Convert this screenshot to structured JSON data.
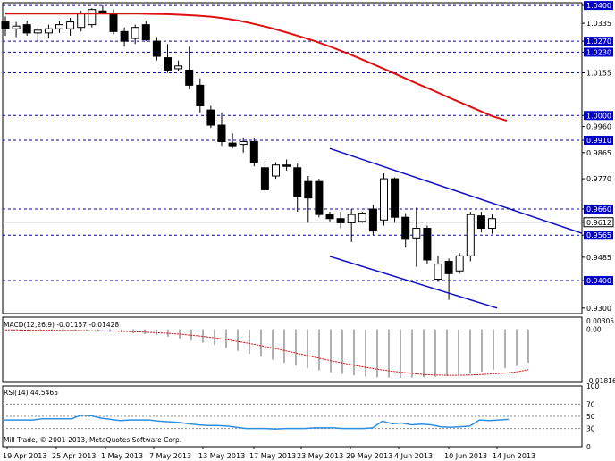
{
  "chart_data": [
    {
      "type": "candlestick",
      "title": "",
      "ylim": [
        0.928,
        1.041
      ],
      "price_levels": [
        "1.0400",
        "1.0335",
        "1.0270",
        "1.0230",
        "1.0155",
        "1.0000",
        "0.9960",
        "0.9910",
        "0.9865",
        "0.9770",
        "0.9660",
        "0.9612",
        "0.9565",
        "0.9485",
        "0.9400",
        "0.9300"
      ],
      "highlighted_levels": [
        "1.0400",
        "1.0270",
        "1.0230",
        "1.0000",
        "0.9910",
        "0.9660",
        "0.9612",
        "0.9565",
        "0.9400"
      ],
      "dashed_lines": [
        1.04,
        1.027,
        1.023,
        1.0155,
        1.0,
        0.991,
        0.966,
        0.9565,
        0.94
      ],
      "current_price_line": 0.9612,
      "candles": [
        {
          "o": 1.034,
          "h": 1.036,
          "l": 1.029,
          "c": 1.0315
        },
        {
          "o": 1.0315,
          "h": 1.034,
          "l": 1.0285,
          "c": 1.0325
        },
        {
          "o": 1.033,
          "h": 1.0345,
          "l": 1.029,
          "c": 1.03
        },
        {
          "o": 1.03,
          "h": 1.032,
          "l": 1.027,
          "c": 1.031
        },
        {
          "o": 1.03,
          "h": 1.033,
          "l": 1.028,
          "c": 1.0315
        },
        {
          "o": 1.0315,
          "h": 1.0345,
          "l": 1.03,
          "c": 1.033
        },
        {
          "o": 1.0315,
          "h": 1.0355,
          "l": 1.029,
          "c": 1.034
        },
        {
          "o": 1.032,
          "h": 1.038,
          "l": 1.0305,
          "c": 1.037
        },
        {
          "o": 1.033,
          "h": 1.039,
          "l": 1.032,
          "c": 1.0385
        },
        {
          "o": 1.038,
          "h": 1.04,
          "l": 1.037,
          "c": 1.037
        },
        {
          "o": 1.037,
          "h": 1.0385,
          "l": 1.0295,
          "c": 1.0305
        },
        {
          "o": 1.0305,
          "h": 1.032,
          "l": 1.025,
          "c": 1.027
        },
        {
          "o": 1.028,
          "h": 1.033,
          "l": 1.026,
          "c": 1.032
        },
        {
          "o": 1.033,
          "h": 1.0345,
          "l": 1.027,
          "c": 1.0275
        },
        {
          "o": 1.027,
          "h": 1.0285,
          "l": 1.02,
          "c": 1.0215
        },
        {
          "o": 1.021,
          "h": 1.026,
          "l": 1.0155,
          "c": 1.0165
        },
        {
          "o": 1.017,
          "h": 1.02,
          "l": 1.016,
          "c": 1.018
        },
        {
          "o": 1.0165,
          "h": 1.025,
          "l": 1.0095,
          "c": 1.011
        },
        {
          "o": 1.011,
          "h": 1.0135,
          "l": 1.001,
          "c": 1.0035
        },
        {
          "o": 1.002,
          "h": 1.0035,
          "l": 0.9955,
          "c": 0.9965
        },
        {
          "o": 0.9965,
          "h": 1.001,
          "l": 0.989,
          "c": 0.9905
        },
        {
          "o": 0.99,
          "h": 0.9935,
          "l": 0.988,
          "c": 0.989
        },
        {
          "o": 0.9895,
          "h": 0.992,
          "l": 0.9865,
          "c": 0.9905
        },
        {
          "o": 0.9905,
          "h": 0.992,
          "l": 0.9815,
          "c": 0.983
        },
        {
          "o": 0.981,
          "h": 0.9835,
          "l": 0.972,
          "c": 0.973
        },
        {
          "o": 0.978,
          "h": 0.983,
          "l": 0.977,
          "c": 0.982
        },
        {
          "o": 0.982,
          "h": 0.984,
          "l": 0.98,
          "c": 0.9815
        },
        {
          "o": 0.981,
          "h": 0.9825,
          "l": 0.965,
          "c": 0.9705
        },
        {
          "o": 0.976,
          "h": 0.978,
          "l": 0.961,
          "c": 0.97
        },
        {
          "o": 0.976,
          "h": 0.977,
          "l": 0.963,
          "c": 0.964
        },
        {
          "o": 0.964,
          "h": 0.965,
          "l": 0.9615,
          "c": 0.9625
        },
        {
          "o": 0.9625,
          "h": 0.965,
          "l": 0.959,
          "c": 0.961
        },
        {
          "o": 0.961,
          "h": 0.966,
          "l": 0.954,
          "c": 0.964
        },
        {
          "o": 0.9615,
          "h": 0.965,
          "l": 0.961,
          "c": 0.9645
        },
        {
          "o": 0.966,
          "h": 0.9675,
          "l": 0.9565,
          "c": 0.958
        },
        {
          "o": 0.962,
          "h": 0.979,
          "l": 0.96,
          "c": 0.977
        },
        {
          "o": 0.977,
          "h": 0.9775,
          "l": 0.961,
          "c": 0.963
        },
        {
          "o": 0.963,
          "h": 0.9645,
          "l": 0.952,
          "c": 0.955
        },
        {
          "o": 0.9555,
          "h": 0.9665,
          "l": 0.945,
          "c": 0.959
        },
        {
          "o": 0.959,
          "h": 0.96,
          "l": 0.946,
          "c": 0.9475
        },
        {
          "o": 0.9405,
          "h": 0.949,
          "l": 0.9395,
          "c": 0.946
        },
        {
          "o": 0.947,
          "h": 0.948,
          "l": 0.933,
          "c": 0.9425
        },
        {
          "o": 0.9435,
          "h": 0.95,
          "l": 0.9425,
          "c": 0.949
        },
        {
          "o": 0.949,
          "h": 0.965,
          "l": 0.947,
          "c": 0.964
        },
        {
          "o": 0.9635,
          "h": 0.965,
          "l": 0.9575,
          "c": 0.959
        },
        {
          "o": 0.959,
          "h": 0.964,
          "l": 0.957,
          "c": 0.9625
        }
      ],
      "moving_average": [
        1.037,
        1.037,
        1.037,
        1.037,
        1.037,
        1.037,
        1.037,
        1.037,
        1.037,
        1.037,
        1.0369,
        1.0368,
        1.0366,
        1.0363,
        1.0359,
        1.0352,
        1.0343,
        1.0331,
        1.0318,
        1.0303,
        1.0287,
        1.027,
        1.0251,
        1.023,
        1.0208,
        1.0185,
        1.0162,
        1.0138,
        1.0114,
        1.0091,
        1.0067,
        1.0044,
        1.0021,
        0.9998,
        0.9981
      ],
      "trend_channel": {
        "upper": [
          [
            30,
            0.988
          ],
          [
            45,
            0.965
          ],
          [
            50,
            0.9572
          ]
        ],
        "lower": [
          [
            30,
            0.9488
          ],
          [
            42,
            0.93
          ]
        ]
      }
    },
    {
      "type": "macd",
      "title": "MACD(12,26,9) -0.01157 -0.01428",
      "ylim": [
        -0.01816,
        0.00305
      ],
      "tick_labels": [
        "0.00305",
        "0.00",
        "-0.01816"
      ],
      "histogram": [
        0.0,
        -0.0001,
        -0.0002,
        -0.0003,
        -0.0004,
        -0.0005,
        -0.0006,
        -0.0007,
        -0.0008,
        -0.0009,
        -0.0011,
        -0.0014,
        -0.0017,
        -0.0021,
        -0.0026,
        -0.0032,
        -0.0039,
        -0.0047,
        -0.0056,
        -0.0066,
        -0.0076,
        -0.0087,
        -0.0097,
        -0.0107,
        -0.0118,
        -0.0128,
        -0.0137,
        -0.0145,
        -0.0152,
        -0.0158,
        -0.0163,
        -0.0167,
        -0.017,
        -0.0171,
        -0.0172,
        -0.0171,
        -0.017,
        -0.0168,
        -0.0165,
        -0.0162,
        -0.0157,
        -0.015,
        -0.0143,
        -0.0137,
        -0.013,
        -0.0119
      ],
      "signal": [
        -0.0002,
        -0.0002,
        -0.0003,
        -0.0003,
        -0.0003,
        -0.0004,
        -0.0004,
        -0.0005,
        -0.0005,
        -0.0006,
        -0.0007,
        -0.0008,
        -0.001,
        -0.0012,
        -0.0014,
        -0.0017,
        -0.0021,
        -0.0025,
        -0.003,
        -0.0036,
        -0.0043,
        -0.005,
        -0.0058,
        -0.0066,
        -0.0075,
        -0.0084,
        -0.0093,
        -0.0102,
        -0.0111,
        -0.0119,
        -0.0127,
        -0.0134,
        -0.0141,
        -0.0147,
        -0.0152,
        -0.0156,
        -0.016,
        -0.0162,
        -0.0163,
        -0.0163,
        -0.0162,
        -0.016,
        -0.0158,
        -0.0155,
        -0.0151,
        -0.0143
      ]
    },
    {
      "type": "line",
      "title": "RSI(14) 44.5465",
      "ylim": [
        0,
        100
      ],
      "tick_labels": [
        "100",
        "70",
        "50",
        "30",
        "0"
      ],
      "levels": [
        70,
        50,
        30
      ],
      "values": [
        44,
        44,
        44,
        44,
        46,
        46,
        46,
        46,
        52,
        51,
        47,
        45,
        43,
        44,
        44,
        44,
        42,
        41,
        40,
        38,
        36,
        35,
        35,
        34,
        32,
        30,
        30,
        30,
        29,
        30,
        30,
        30,
        31,
        31,
        31,
        30,
        30,
        30,
        31,
        42,
        38,
        39,
        36,
        37,
        36,
        33,
        32,
        33,
        34,
        44,
        43,
        44,
        45
      ]
    }
  ],
  "x_labels": [
    "19 Apr 2013",
    "25 Apr 2013",
    "1 May 2013",
    "7 May 2013",
    "13 May 2013",
    "17 May 2013",
    "23 May 2013",
    "29 May 2013",
    "4 Jun 2013",
    "10 Jun 2013",
    "14 Jun 2013"
  ],
  "footer": "Mill Trade, © 2001-2013, MetaQuotes Software Corp.",
  "colors": {
    "axis": "#000000",
    "dashed": "#0000CC",
    "ma": "#E01010",
    "channel": "#1010C8",
    "macd_hist": "#B0B0B0",
    "macd_signal": "#E01010",
    "rsi": "#2E8FE0",
    "label_bg": "#0000CC",
    "current_bg": "#FFFFFF"
  }
}
